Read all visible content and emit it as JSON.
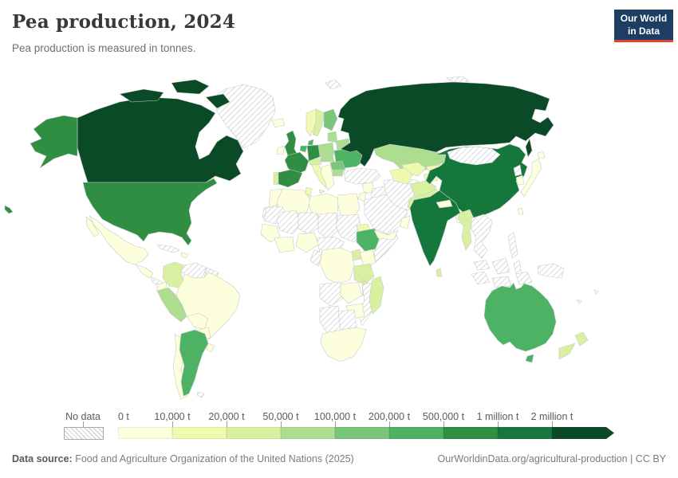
{
  "header": {
    "title": "Pea production, 2024",
    "subtitle": "Pea production is measured in tonnes."
  },
  "logo": {
    "line1": "Our World",
    "line2": "in Data",
    "background": "#1d3d63",
    "accent": "#e0432e"
  },
  "footer": {
    "source_label": "Data source:",
    "source_text": " Food and Agriculture Organization of the United Nations (2025)",
    "credit": "OurWorldinData.org/agricultural-production | CC BY"
  },
  "chart_data": {
    "type": "heatmap",
    "subtype": "choropleth-world-map",
    "title": "Pea production, 2024",
    "subtitle": "Pea production is measured in tonnes.",
    "unit": "tonnes",
    "year": "2024",
    "legend": {
      "no_data": {
        "label": "No data"
      },
      "bins": [
        {
          "threshold_label": "0 t",
          "range": "0 – 10,000 t",
          "color": "#fdffdc"
        },
        {
          "threshold_label": "10,000 t",
          "range": "10,000 – 20,000 t",
          "color": "#f1f9b0"
        },
        {
          "threshold_label": "20,000 t",
          "range": "20,000 – 50,000 t",
          "color": "#d9f0a3"
        },
        {
          "threshold_label": "50,000 t",
          "range": "50,000 – 100,000 t",
          "color": "#addd8e"
        },
        {
          "threshold_label": "100,000 t",
          "range": "100,000 – 200,000 t",
          "color": "#78c679"
        },
        {
          "threshold_label": "200,000 t",
          "range": "200,000 – 500,000 t",
          "color": "#4eb264"
        },
        {
          "threshold_label": "500,000 t",
          "range": "500,000 t – 1 million t",
          "color": "#2f8e41"
        },
        {
          "threshold_label": "1 million t",
          "range": "1 – 2 million t",
          "color": "#15773c"
        },
        {
          "threshold_label": "2 million t",
          "range": "2 million t +",
          "color": "#0b4a26"
        }
      ]
    },
    "countries": {
      "canada": 8,
      "russia": 8,
      "china": 7,
      "india": 7,
      "united-states": 6,
      "france": 6,
      "spain": 6,
      "germany": 6,
      "united-kingdom": 6,
      "ukraine": 5,
      "argentina": 5,
      "australia": 5,
      "ethiopia": 5,
      "denmark": 5,
      "belgium-netherlands": 5,
      "finland": 4,
      "romania": 4,
      "kazakhstan": 3,
      "peru": 3,
      "poland": 3,
      "belarus": 3,
      "baltic-states": 3,
      "bulgaria": 3,
      "czechia-slovakia-hungary": 3,
      "sweden": 2,
      "colombia": 2,
      "madagascar": 2,
      "tanzania": 2,
      "uganda": 2,
      "malawi": 2,
      "myanmar": 2,
      "pakistan": 2,
      "afghanistan": 2,
      "sri-lanka": 2,
      "new-zealand": 2,
      "portugal": 2,
      "switzerland-austria": 2,
      "norway": 1,
      "italy": 1,
      "tunisia": 1,
      "uzbekistan": 1,
      "turkmenistan": 1,
      "kyrgyzstan": 1,
      "tajikistan": 1,
      "eritrea": 1,
      "iceland": 0,
      "ireland": 0,
      "mexico": 0,
      "central-america": 0,
      "hispaniola": 0,
      "ecuador": 0,
      "brazil": 0,
      "bolivia": 0,
      "paraguay": 0,
      "chile": 0,
      "uruguay": 0,
      "western-balkans-greece": 0,
      "morocco": 0,
      "algeria": 0,
      "libya": 0,
      "egypt": 0,
      "senegal-guinea": 0,
      "ghana-ivory-coast": 0,
      "nigeria": 0,
      "kenya": 0,
      "dr-congo": 0,
      "zambia": 0,
      "zimbabwe": 0,
      "south-africa": 0,
      "yemen": 0,
      "oman": 0,
      "syria": 0,
      "jordan-israel": 0,
      "nepal": 0,
      "bangladesh": 0,
      "japan": 0,
      "south-korea": 0,
      "taiwan": 0,
      "greenland": "no_data",
      "svalbard": "no_data",
      "arctic-islands": "no_data",
      "venezuela": "no_data",
      "guyana-suriname": "no_data",
      "cuba": "no_data",
      "panama-nicaragua": "no_data",
      "falkland-islands": "no_data",
      "western-sahara": "no_data",
      "mauritania": "no_data",
      "mali": "no_data",
      "niger": "no_data",
      "chad": "no_data",
      "sudan": "no_data",
      "somalia": "no_data",
      "cameroon-car": "no_data",
      "congo-gabon": "no_data",
      "angola": "no_data",
      "mozambique": "no_data",
      "namibia": "no_data",
      "botswana": "no_data",
      "turkey": "no_data",
      "iraq": "no_data",
      "saudi-arabia": "no_data",
      "iran": "no_data",
      "mongolia": "no_data",
      "north-korea": "no_data",
      "thailand-indochina": "no_data",
      "malaysia": "no_data",
      "indonesia": "no_data",
      "philippines": "no_data",
      "papua-new-guinea": "no_data",
      "pacific-islands": "no_data"
    }
  }
}
